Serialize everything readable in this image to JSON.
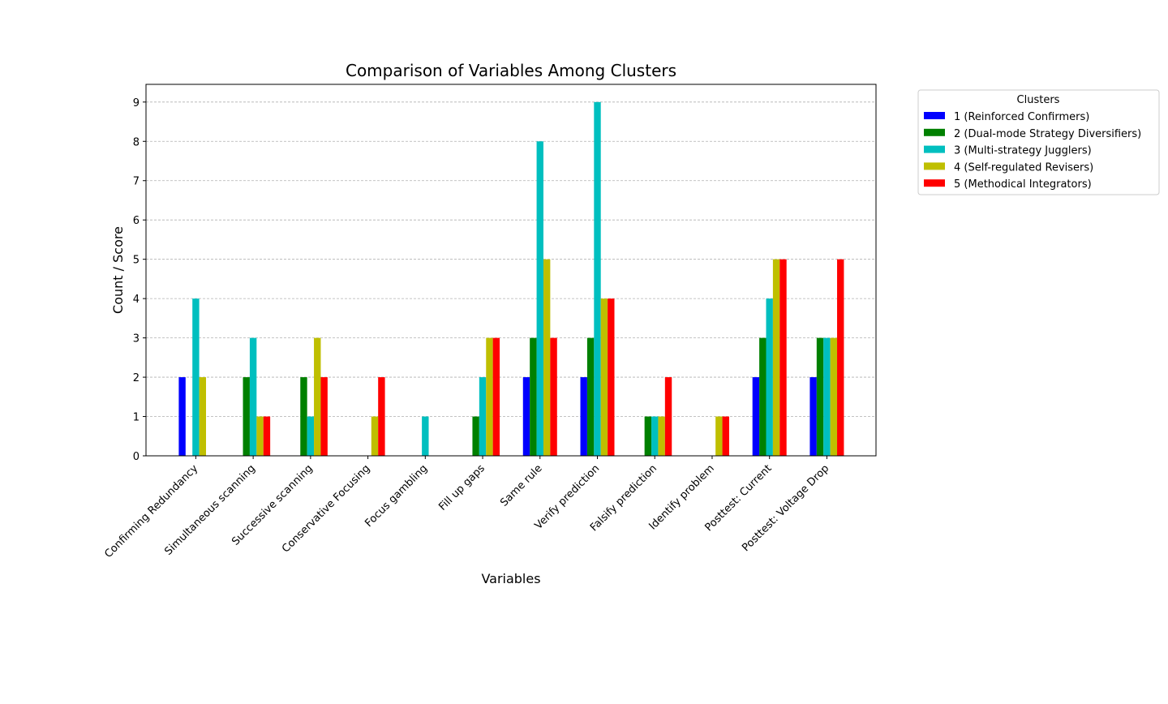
{
  "chart_data": {
    "type": "bar",
    "title": "Comparison of Variables Among Clusters",
    "xlabel": "Variables",
    "ylabel": "Count / Score",
    "ylim": [
      0,
      9.45
    ],
    "yticks": [
      0,
      1,
      2,
      3,
      4,
      5,
      6,
      7,
      8,
      9
    ],
    "grid": "y-dashed",
    "legend_title": "Clusters",
    "legend_position": "outside-top-right",
    "categories": [
      "Confirming Redundancy",
      "Simultaneous scanning",
      "Successive scanning",
      "Conservative Focusing",
      "Focus gambling",
      "Fill up gaps",
      "Same rule",
      "Verify prediction",
      "Falsify prediction",
      "Identify problem",
      "Posttest: Current",
      "Posttest: Voltage Drop"
    ],
    "series": [
      {
        "name": "1 (Reinforced Confirmers)",
        "color": "#0000ff",
        "values": [
          2,
          0,
          0,
          0,
          0,
          0,
          2,
          2,
          0,
          0,
          2,
          2
        ]
      },
      {
        "name": "2 (Dual-mode Strategy Diversifiers)",
        "color": "#008000",
        "values": [
          0,
          2,
          2,
          0,
          0,
          1,
          3,
          3,
          1,
          0,
          3,
          3
        ]
      },
      {
        "name": "3 (Multi-strategy Jugglers)",
        "color": "#00bfbf",
        "values": [
          4,
          3,
          1,
          0,
          1,
          2,
          8,
          9,
          1,
          0,
          4,
          3
        ]
      },
      {
        "name": "4 (Self-regulated Revisers)",
        "color": "#bfbf00",
        "values": [
          2,
          1,
          3,
          1,
          0,
          3,
          5,
          4,
          1,
          1,
          5,
          3
        ]
      },
      {
        "name": "5 (Methodical Integrators)",
        "color": "#ff0000",
        "values": [
          0,
          1,
          2,
          2,
          0,
          3,
          3,
          4,
          2,
          1,
          5,
          5
        ]
      }
    ]
  }
}
